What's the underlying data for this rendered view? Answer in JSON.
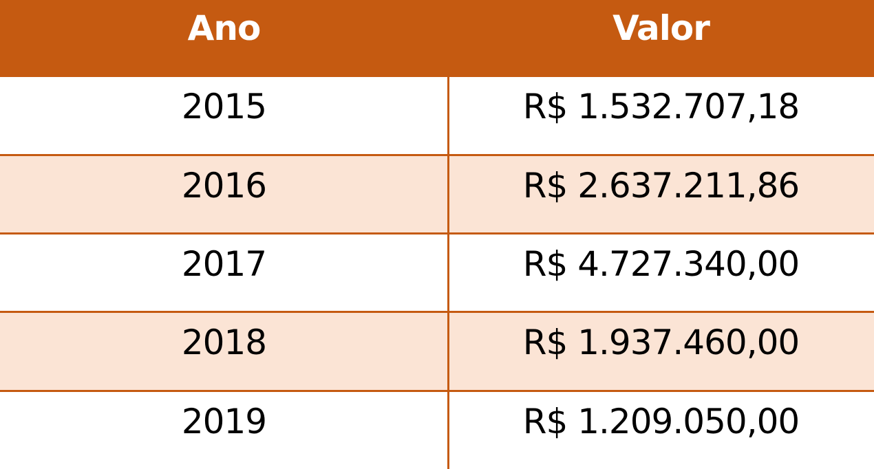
{
  "table": {
    "headers": [
      "Ano",
      "Valor"
    ],
    "rows": [
      {
        "ano": "2015",
        "valor": "R$ 1.532.707,18"
      },
      {
        "ano": "2016",
        "valor": "R$ 2.637.211,86"
      },
      {
        "ano": "2017",
        "valor": "R$ 4.727.340,00"
      },
      {
        "ano": "2018",
        "valor": "R$ 1.937.460,00"
      },
      {
        "ano": "2019",
        "valor": "R$ 1.209.050,00"
      }
    ]
  },
  "colors": {
    "header_bg": "#C55A11",
    "header_text": "#FFFFFF",
    "band_light": "#FBE4D5",
    "border": "#C55A11"
  }
}
